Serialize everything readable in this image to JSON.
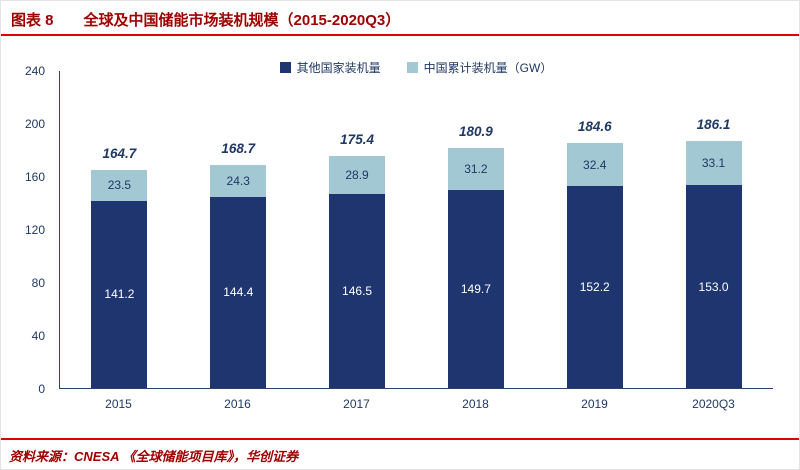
{
  "header": {
    "label": "图表 8",
    "title": "全球及中国储能市场装机规模（2015-2020Q3）"
  },
  "footer": {
    "source": "资料来源：CNESA 《全球储能项目库》，华创证券"
  },
  "colors": {
    "series_other": "#1E3570",
    "series_china": "#A2C8D4",
    "accent_red": "#E00000",
    "title_red": "#A00000",
    "axis_text": "#1F3864"
  },
  "chart_data": {
    "type": "bar",
    "stacked": true,
    "title": "全球及中国储能市场装机规模（2015-2020Q3）",
    "categories": [
      "2015",
      "2016",
      "2017",
      "2018",
      "2019",
      "2020Q3"
    ],
    "series": [
      {
        "name": "其他国家装机量",
        "color": "#1E3570",
        "values": [
          141.2,
          144.4,
          146.5,
          149.7,
          152.2,
          153.0
        ]
      },
      {
        "name": "中国累计装机量（GW）",
        "color": "#A2C8D4",
        "values": [
          23.5,
          24.3,
          28.9,
          31.2,
          32.4,
          33.1
        ]
      }
    ],
    "totals": [
      164.7,
      168.7,
      175.4,
      180.9,
      184.6,
      186.1
    ],
    "xlabel": "",
    "ylabel": "",
    "ylim": [
      0,
      240
    ],
    "yticks": [
      0,
      40,
      80,
      120,
      160,
      200,
      240
    ],
    "legend_position": "top",
    "grid": false
  }
}
